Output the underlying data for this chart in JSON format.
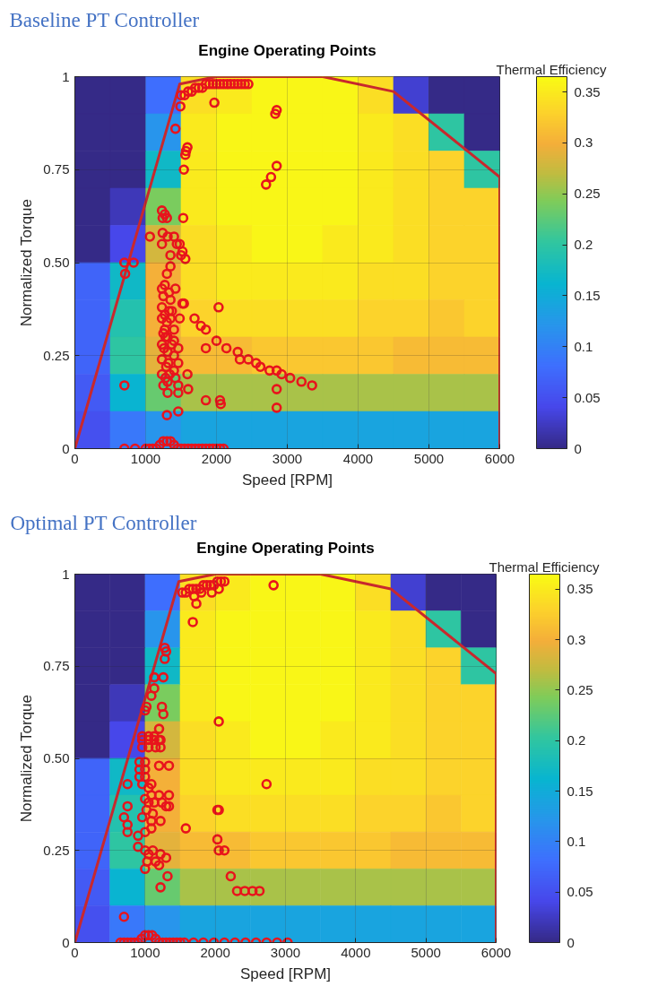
{
  "chart_data": [
    {
      "type": "heatmap",
      "title": "Baseline PT Controller",
      "subtitle": "Engine Operating Points",
      "xlabel": "Speed [RPM]",
      "ylabel": "Normalized Torque",
      "clabel": "Thermal Efficiency",
      "xlim": [
        0,
        6000
      ],
      "xticks": [
        0,
        1000,
        2000,
        3000,
        4000,
        5000,
        6000
      ],
      "ylim": [
        0,
        1
      ],
      "yticks": [
        0,
        0.25,
        {
          "value": 0.5,
          "label": "0.50"
        },
        0.75,
        1
      ],
      "clim": [
        0,
        0.365
      ],
      "cticks": [
        0,
        0.05,
        0.1,
        0.15,
        0.2,
        0.25,
        0.3,
        0.35
      ],
      "grid": true,
      "cells": [
        [
          0,
          0,
          0.08,
          0.34,
          0.35,
          0.36,
          0.36,
          0.36,
          0.34,
          0.03,
          0,
          0
        ],
        [
          0,
          0,
          0.12,
          0.35,
          0.36,
          0.36,
          0.36,
          0.36,
          0.35,
          0.34,
          0.2,
          0
        ],
        [
          0,
          0,
          0.17,
          0.35,
          0.36,
          0.36,
          0.36,
          0.36,
          0.35,
          0.34,
          0.33,
          0.2
        ],
        [
          0,
          0.02,
          0.24,
          0.35,
          0.36,
          0.36,
          0.36,
          0.36,
          0.35,
          0.34,
          0.33,
          0.33
        ],
        [
          0,
          0.04,
          0.28,
          0.34,
          0.35,
          0.36,
          0.36,
          0.35,
          0.35,
          0.34,
          0.33,
          0.33
        ],
        [
          0.07,
          0.17,
          0.3,
          0.34,
          0.35,
          0.35,
          0.35,
          0.35,
          0.34,
          0.34,
          0.33,
          0.33
        ],
        [
          0.07,
          0.19,
          0.3,
          0.33,
          0.34,
          0.34,
          0.34,
          0.34,
          0.33,
          0.33,
          0.32,
          0.33
        ],
        [
          0.07,
          0.2,
          0.29,
          0.31,
          0.31,
          0.32,
          0.32,
          0.32,
          0.32,
          0.31,
          0.31,
          0.31
        ],
        [
          0.06,
          0.16,
          0.23,
          0.26,
          0.26,
          0.26,
          0.26,
          0.26,
          0.26,
          0.26,
          0.26,
          0.26
        ],
        [
          0.05,
          0.09,
          0.12,
          0.14,
          0.14,
          0.14,
          0.14,
          0.14,
          0.14,
          0.14,
          0.14,
          0.14
        ]
      ],
      "series": [
        {
          "type": "line",
          "color": "#c8282d",
          "x": [
            0,
            1480,
            2000,
            3500,
            4500,
            6000,
            6000
          ],
          "values": [
            0,
            0.98,
            1,
            1,
            0.96,
            0.73,
            0
          ]
        },
        {
          "type": "scatter",
          "marker": "circle",
          "color": "#e8141c",
          "x": [
            1500,
            1550,
            1600,
            1650,
            1700,
            1750,
            1800,
            1850,
            1900,
            1950,
            2000,
            2050,
            2100,
            2150,
            2200,
            2250,
            2300,
            2350,
            2400,
            2450,
            1970,
            1490,
            2830,
            2850,
            1420,
            1590,
            1570,
            1560,
            1540,
            2850,
            2770,
            2700,
            1230,
            1270,
            1300,
            1240,
            1530,
            1060,
            1240,
            1230,
            1310,
            1400,
            1440,
            1480,
            1520,
            1500,
            1560,
            1350,
            1350,
            1300,
            1230,
            1250,
            1330,
            1420,
            1350,
            1540,
            1520,
            1230,
            1270,
            1330,
            1230,
            1350,
            1480,
            1270,
            1400,
            1310,
            1230,
            1400,
            1460,
            1310,
            1230,
            1400,
            1460,
            1290,
            1230,
            1400,
            1590,
            1310,
            1420,
            1250,
            1460,
            1600,
            1310,
            1460,
            700,
            1850,
            2050,
            2060,
            1460,
            1300,
            1690,
            1780,
            1850,
            1850,
            2030,
            2000,
            2140,
            2300,
            2330,
            2450,
            2560,
            2620,
            2750,
            2850,
            2920,
            3040,
            3200,
            3350,
            2850,
            2850,
            700,
            830,
            710,
            1280,
            1300,
            1260,
            1320,
            1280,
            1340,
            1270,
            1370,
            1370,
            1250,
            700,
            850,
            1000,
            1050,
            1100,
            1150,
            1200,
            1250,
            1300,
            1350,
            1400,
            1450,
            1500,
            1550,
            1600,
            1650,
            1700,
            1750,
            1800,
            1850,
            1900,
            1950,
            2000,
            2050,
            2100
          ],
          "values": [
            0.95,
            0.95,
            0.96,
            0.96,
            0.97,
            0.97,
            0.97,
            0.98,
            0.98,
            0.98,
            0.98,
            0.98,
            0.98,
            0.98,
            0.98,
            0.98,
            0.98,
            0.98,
            0.98,
            0.98,
            0.93,
            0.92,
            0.9,
            0.91,
            0.86,
            0.81,
            0.8,
            0.79,
            0.75,
            0.76,
            0.73,
            0.71,
            0.64,
            0.63,
            0.62,
            0.62,
            0.62,
            0.57,
            0.58,
            0.55,
            0.57,
            0.57,
            0.55,
            0.55,
            0.53,
            0.52,
            0.51,
            0.52,
            0.49,
            0.47,
            0.43,
            0.41,
            0.42,
            0.43,
            0.4,
            0.39,
            0.39,
            0.38,
            0.36,
            0.37,
            0.35,
            0.35,
            0.35,
            0.32,
            0.32,
            0.3,
            0.28,
            0.29,
            0.27,
            0.26,
            0.24,
            0.25,
            0.23,
            0.22,
            0.2,
            0.21,
            0.2,
            0.18,
            0.19,
            0.17,
            0.17,
            0.16,
            0.15,
            0.15,
            0.17,
            0.13,
            0.13,
            0.12,
            0.1,
            0.09,
            0.35,
            0.33,
            0.32,
            0.27,
            0.38,
            0.29,
            0.27,
            0.26,
            0.24,
            0.24,
            0.23,
            0.22,
            0.21,
            0.21,
            0.2,
            0.19,
            0.18,
            0.17,
            0.16,
            0.11,
            0.5,
            0.5,
            0.47,
            0.3,
            0.34,
            0.27,
            0.23,
            0.19,
            0.2,
            0.44,
            0.37,
            0.28,
            0.31,
            0,
            0,
            0,
            0,
            0,
            0,
            0.01,
            0.02,
            0.02,
            0.02,
            0.01,
            0,
            0,
            0,
            0,
            0,
            0,
            0,
            0,
            0,
            0,
            0,
            0,
            0,
            0
          ]
        }
      ]
    },
    {
      "type": "heatmap",
      "title": "Optimal PT Controller",
      "subtitle": "Engine Operating Points",
      "xlabel": "Speed [RPM]",
      "ylabel": "Normalized Torque",
      "clabel": "Thermal Efficiency",
      "xlim": [
        0,
        6000
      ],
      "xticks": [
        0,
        1000,
        2000,
        3000,
        4000,
        5000,
        6000
      ],
      "ylim": [
        0,
        1
      ],
      "yticks": [
        0,
        0.25,
        {
          "value": 0.5,
          "label": "0.50"
        },
        0.75,
        1
      ],
      "clim": [
        0,
        0.365
      ],
      "cticks": [
        0,
        0.05,
        0.1,
        0.15,
        0.2,
        0.25,
        0.3,
        0.35
      ],
      "grid": true,
      "cells": [
        [
          0,
          0,
          0.08,
          0.34,
          0.35,
          0.36,
          0.36,
          0.36,
          0.34,
          0.03,
          0,
          0
        ],
        [
          0,
          0,
          0.12,
          0.35,
          0.36,
          0.36,
          0.36,
          0.36,
          0.35,
          0.34,
          0.2,
          0
        ],
        [
          0,
          0,
          0.17,
          0.35,
          0.36,
          0.36,
          0.36,
          0.36,
          0.35,
          0.34,
          0.33,
          0.2
        ],
        [
          0,
          0.02,
          0.24,
          0.35,
          0.36,
          0.36,
          0.36,
          0.36,
          0.35,
          0.34,
          0.33,
          0.33
        ],
        [
          0,
          0.04,
          0.28,
          0.34,
          0.35,
          0.36,
          0.36,
          0.35,
          0.35,
          0.34,
          0.33,
          0.33
        ],
        [
          0.07,
          0.17,
          0.3,
          0.34,
          0.35,
          0.35,
          0.35,
          0.35,
          0.34,
          0.34,
          0.33,
          0.33
        ],
        [
          0.07,
          0.19,
          0.3,
          0.33,
          0.34,
          0.34,
          0.34,
          0.34,
          0.33,
          0.33,
          0.32,
          0.33
        ],
        [
          0.07,
          0.2,
          0.29,
          0.31,
          0.31,
          0.32,
          0.32,
          0.32,
          0.32,
          0.31,
          0.31,
          0.31
        ],
        [
          0.06,
          0.16,
          0.23,
          0.26,
          0.26,
          0.26,
          0.26,
          0.26,
          0.26,
          0.26,
          0.26,
          0.26
        ],
        [
          0.05,
          0.09,
          0.12,
          0.14,
          0.14,
          0.14,
          0.14,
          0.14,
          0.14,
          0.14,
          0.14,
          0.14
        ]
      ],
      "series": [
        {
          "type": "line",
          "color": "#c8282d",
          "x": [
            0,
            1480,
            2000,
            3500,
            4500,
            6000,
            6000
          ],
          "values": [
            0,
            0.98,
            1,
            1,
            0.96,
            0.73,
            0
          ]
        },
        {
          "type": "scatter",
          "marker": "circle",
          "color": "#e8141c",
          "x": [
            1530,
            1580,
            1630,
            1680,
            1730,
            1780,
            1830,
            1880,
            1930,
            1980,
            2030,
            2080,
            2130,
            1700,
            1800,
            1950,
            2050,
            2830,
            1730,
            1680,
            1280,
            1300,
            1280,
            1130,
            1260,
            1130,
            1090,
            1020,
            1240,
            1260,
            1000,
            2050,
            960,
            1050,
            1130,
            1220,
            1200,
            960,
            1050,
            1130,
            1200,
            960,
            1050,
            1150,
            1220,
            920,
            1000,
            920,
            1000,
            920,
            1000,
            960,
            1090,
            1050,
            1200,
            1340,
            750,
            1000,
            1090,
            1200,
            1340,
            1050,
            1130,
            1240,
            1300,
            1340,
            1020,
            1110,
            750,
            700,
            750,
            750,
            960,
            1090,
            1220,
            900,
            1000,
            1090,
            1580,
            900,
            1000,
            1050,
            1110,
            1030,
            1150,
            1220,
            1300,
            1000,
            1200,
            1320,
            1220,
            700,
            2030,
            2050,
            2030,
            2050,
            2130,
            2220,
            2310,
            2420,
            2530,
            2630,
            2730,
            650,
            700,
            750,
            800,
            850,
            900,
            950,
            1000,
            1050,
            1100,
            1150,
            1200,
            1250,
            1300,
            1350,
            1400,
            1450,
            1500,
            1560,
            1690,
            1830,
            1980,
            2130,
            2280,
            2430,
            2580,
            2730,
            2880,
            3030
          ],
          "values": [
            0.95,
            0.95,
            0.96,
            0.96,
            0.96,
            0.96,
            0.97,
            0.97,
            0.97,
            0.97,
            0.98,
            0.98,
            0.98,
            0.94,
            0.95,
            0.95,
            0.96,
            0.97,
            0.92,
            0.87,
            0.8,
            0.79,
            0.77,
            0.72,
            0.72,
            0.69,
            0.67,
            0.64,
            0.64,
            0.62,
            0.63,
            0.6,
            0.56,
            0.56,
            0.56,
            0.55,
            0.58,
            0.55,
            0.55,
            0.55,
            0.55,
            0.53,
            0.53,
            0.53,
            0.53,
            0.49,
            0.49,
            0.47,
            0.47,
            0.45,
            0.45,
            0.43,
            0.43,
            0.42,
            0.48,
            0.48,
            0.43,
            0.39,
            0.4,
            0.4,
            0.4,
            0.38,
            0.38,
            0.38,
            0.37,
            0.37,
            0.36,
            0.35,
            0.37,
            0.34,
            0.32,
            0.3,
            0.34,
            0.33,
            0.33,
            0.29,
            0.3,
            0.31,
            0.31,
            0.26,
            0.25,
            0.24,
            0.25,
            0.22,
            0.22,
            0.24,
            0.23,
            0.2,
            0.21,
            0.18,
            0.15,
            0.07,
            0.36,
            0.36,
            0.28,
            0.25,
            0.25,
            0.18,
            0.14,
            0.14,
            0.14,
            0.14,
            0.43,
            0,
            0,
            0,
            0,
            0,
            0,
            0.01,
            0.02,
            0.02,
            0.02,
            0.01,
            0,
            0,
            0,
            0,
            0,
            0,
            0,
            0,
            0,
            0,
            0,
            0,
            0,
            0,
            0,
            0,
            0,
            0
          ]
        }
      ]
    }
  ]
}
